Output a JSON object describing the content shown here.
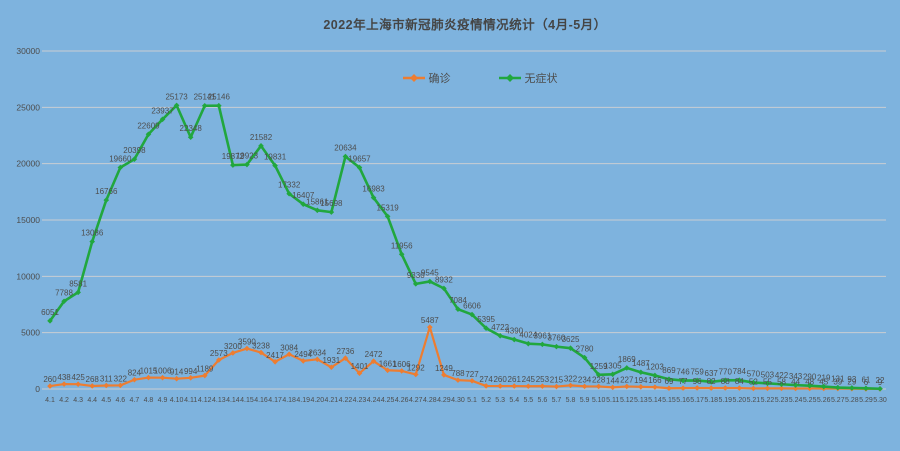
{
  "colors": {
    "background": "#7EB3DE",
    "grid": "#C9CED3",
    "label_text": "#4D4D4D",
    "axis_text": "#4D4D4D",
    "title_text": "#454545"
  },
  "chart_data": {
    "type": "line",
    "title": "2022年上海市新冠肺炎疫情情况统计（4月-5月）",
    "legend_position": "top",
    "grid": true,
    "xlabel": "",
    "ylabel": "",
    "ylim": [
      0,
      30000
    ],
    "y_ticks": [
      0,
      5000,
      10000,
      15000,
      20000,
      25000,
      30000
    ],
    "categories": [
      "4.1",
      "4.2",
      "4.3",
      "4.4",
      "4.5",
      "4.6",
      "4.7",
      "4.8",
      "4.9",
      "4.10",
      "4.11",
      "4.12",
      "4.13",
      "4.14",
      "4.15",
      "4.16",
      "4.17",
      "4.18",
      "4.19",
      "4.20",
      "4.21",
      "4.22",
      "4.23",
      "4.24",
      "4.25",
      "4.26",
      "4.27",
      "4.28",
      "4.29",
      "4.30",
      "5.1",
      "5.2",
      "5.3",
      "5.4",
      "5.5",
      "5.6",
      "5.7",
      "5.8",
      "5.9",
      "5.10",
      "5.11",
      "5.12",
      "5.13",
      "5.14",
      "5.15",
      "5.16",
      "5.17",
      "5.18",
      "5.19",
      "5.20",
      "5.21",
      "5.22",
      "5.23",
      "5.24",
      "5.25",
      "5.26",
      "5.27",
      "5.28",
      "5.29",
      "5.30"
    ],
    "series": [
      {
        "id": "confirmed",
        "name": "确诊",
        "color": "#ED7D31",
        "values": [
          260,
          438,
          425,
          268,
          311,
          322,
          824,
          1015,
          1006,
          914,
          994,
          1189,
          2573,
          3200,
          3590,
          3238,
          2417,
          3084,
          2494,
          2634,
          1931,
          2736,
          1401,
          2472,
          1661,
          1606,
          1292,
          5487,
          1249,
          788,
          727,
          274,
          260,
          261,
          245,
          253,
          215,
          322,
          234,
          228,
          144,
          227,
          194,
          166,
          69,
          77,
          96,
          82,
          88,
          84,
          52,
          55,
          58,
          44,
          48,
          45,
          39,
          29,
          6,
          9
        ]
      },
      {
        "id": "asymptomatic",
        "name": "无症状",
        "color": "#21A73E",
        "values": [
          6051,
          7788,
          8581,
          13086,
          16766,
          19660,
          20398,
          22609,
          23937,
          25173,
          22348,
          25141,
          25146,
          19872,
          19923,
          21582,
          19831,
          17332,
          16407,
          15861,
          15698,
          20634,
          19657,
          16983,
          15319,
          11956,
          9330,
          9545,
          8932,
          7084,
          6606,
          5395,
          4722,
          4390,
          4024,
          3961,
          3760,
          3625,
          2780,
          1259,
          1305,
          1869,
          1487,
          1203,
          869,
          746,
          759,
          637,
          770,
          784,
          570,
          503,
          422,
          343,
          290,
          219,
          131,
          93,
          61,
          22
        ]
      }
    ]
  }
}
